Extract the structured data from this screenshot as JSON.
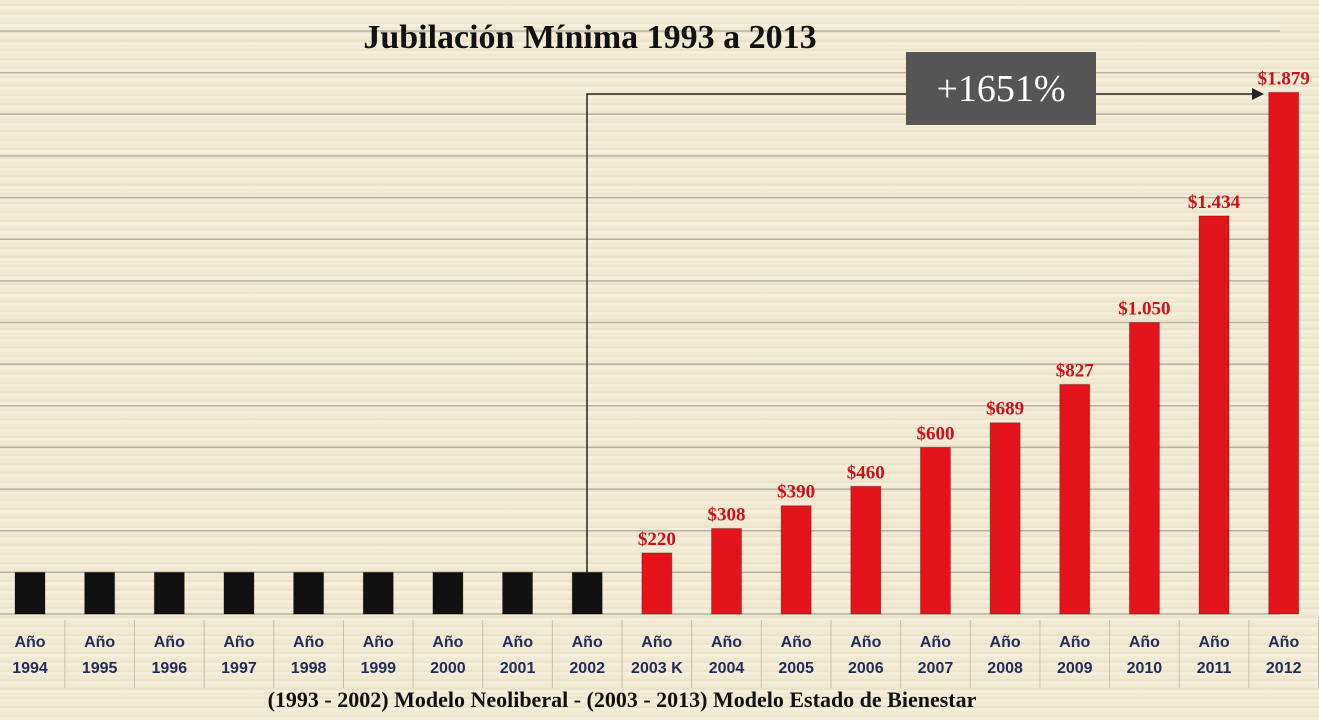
{
  "chart_data": {
    "type": "bar",
    "title": "Jubilación Mínima 1993 a 2013",
    "subtitle": "(1993 - 2002) Modelo Neoliberal - (2003 - 2013) Modelo Estado de Bienestar",
    "annotation": "+1651%",
    "categories": [
      "Año\n1994",
      "Año\n1995",
      "Año\n1996",
      "Año\n1997",
      "Año\n1998",
      "Año\n1999",
      "Año\n2000",
      "Año\n2001",
      "Año\n2002",
      "Año\n2003 K",
      "Año\n2004",
      "Año\n2005",
      "Año\n2006",
      "Año\n2007",
      "Año\n2008",
      "Año\n2009",
      "Año\n2010",
      "Año\n2011",
      "Año\n2012"
    ],
    "values": [
      150,
      150,
      150,
      150,
      150,
      150,
      150,
      150,
      150,
      220,
      308,
      390,
      460,
      600,
      689,
      827,
      1050,
      1434,
      1879
    ],
    "value_labels": [
      null,
      null,
      null,
      null,
      null,
      null,
      null,
      null,
      null,
      "$220",
      "$308",
      "$390",
      "$460",
      "$600",
      "$689",
      "$827",
      "$1.050",
      "$1.434",
      "$1.879"
    ],
    "colors": [
      "#111111",
      "#111111",
      "#111111",
      "#111111",
      "#111111",
      "#111111",
      "#111111",
      "#111111",
      "#111111",
      "#e3141c",
      "#e3141c",
      "#e3141c",
      "#e3141c",
      "#e3141c",
      "#e3141c",
      "#e3141c",
      "#e3141c",
      "#e3141c",
      "#e3141c"
    ],
    "ylim": [
      0,
      2100
    ],
    "yticks": [
      0,
      150,
      300,
      450,
      600,
      750,
      900,
      1050,
      1200,
      1350,
      1500,
      1650,
      1800,
      1950,
      2100
    ],
    "grid": true
  }
}
